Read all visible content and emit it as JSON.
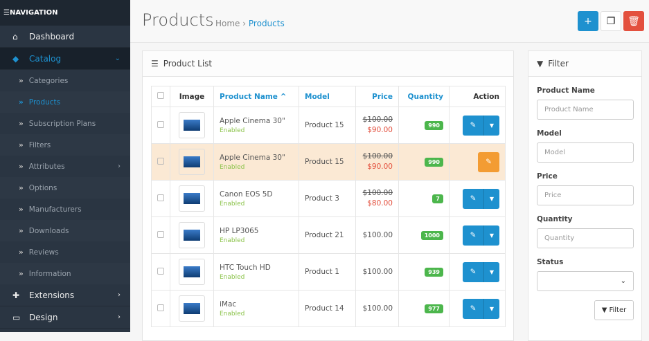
{
  "nav": {
    "header": "NAVIGATION",
    "items": [
      {
        "label": "Dashboard",
        "icon": "home-icon"
      },
      {
        "label": "Catalog",
        "icon": "tag-icon"
      },
      {
        "label": "Extensions",
        "icon": "puzzle-icon"
      },
      {
        "label": "Design",
        "icon": "desktop-icon"
      }
    ],
    "catalog_sub": [
      "Categories",
      "Products",
      "Subscription Plans",
      "Filters",
      "Attributes",
      "Options",
      "Manufacturers",
      "Downloads",
      "Reviews",
      "Information"
    ]
  },
  "header": {
    "title": "Products",
    "breadcrumb": [
      "Home",
      "Products"
    ],
    "sep": "›"
  },
  "colors": {
    "primary": "#1e91cf",
    "danger": "#e3503e",
    "warning": "#f39c33",
    "success": "#4cb64c"
  },
  "list": {
    "title": "Product List",
    "columns": [
      "Image",
      "Product Name",
      "Model",
      "Price",
      "Quantity",
      "Action"
    ],
    "rows": [
      {
        "name": "Apple Cinema 30\"",
        "status": "Enabled",
        "model": "Product 15",
        "price": "$100.00",
        "special": "$90.00",
        "qty": "990",
        "highlight": false
      },
      {
        "name": "Apple Cinema 30\"",
        "status": "Enabled",
        "model": "Product 15",
        "price": "$100.00",
        "special": "$90.00",
        "qty": "990",
        "highlight": true
      },
      {
        "name": "Canon EOS 5D",
        "status": "Enabled",
        "model": "Product 3",
        "price": "$100.00",
        "special": "$80.00",
        "qty": "7",
        "highlight": false
      },
      {
        "name": "HP LP3065",
        "status": "Enabled",
        "model": "Product 21",
        "price": "$100.00",
        "special": "",
        "qty": "1000",
        "highlight": false
      },
      {
        "name": "HTC Touch HD",
        "status": "Enabled",
        "model": "Product 1",
        "price": "$100.00",
        "special": "",
        "qty": "939",
        "highlight": false
      },
      {
        "name": "iMac",
        "status": "Enabled",
        "model": "Product 14",
        "price": "$100.00",
        "special": "",
        "qty": "977",
        "highlight": false
      }
    ]
  },
  "filter": {
    "title": "Filter",
    "fields": [
      {
        "label": "Product Name",
        "placeholder": "Product Name"
      },
      {
        "label": "Model",
        "placeholder": "Model"
      },
      {
        "label": "Price",
        "placeholder": "Price"
      },
      {
        "label": "Quantity",
        "placeholder": "Quantity"
      }
    ],
    "status_label": "Status",
    "status_value": "",
    "button": "Filter"
  }
}
